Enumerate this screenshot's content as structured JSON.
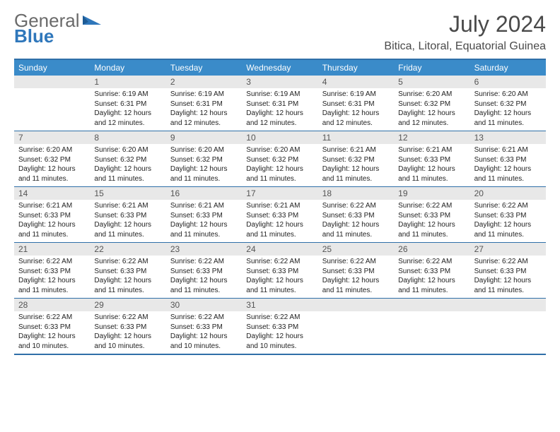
{
  "logo": {
    "general": "General",
    "blue": "Blue"
  },
  "header": {
    "title": "July 2024",
    "location": "Bitica, Litoral, Equatorial Guinea"
  },
  "colors": {
    "header_bg": "#3a8bc9",
    "border": "#2f6fa8",
    "daynum_bg": "#e8e8e8",
    "logo_gray": "#6a6a6a",
    "logo_blue": "#2f77bb"
  },
  "days": [
    "Sunday",
    "Monday",
    "Tuesday",
    "Wednesday",
    "Thursday",
    "Friday",
    "Saturday"
  ],
  "grid": {
    "start_offset": 1,
    "total_days": 31,
    "rows": 5,
    "cols": 7
  },
  "cells": [
    {
      "n": 1,
      "sr": "6:19 AM",
      "ss": "6:31 PM",
      "dl": "12 hours and 12 minutes."
    },
    {
      "n": 2,
      "sr": "6:19 AM",
      "ss": "6:31 PM",
      "dl": "12 hours and 12 minutes."
    },
    {
      "n": 3,
      "sr": "6:19 AM",
      "ss": "6:31 PM",
      "dl": "12 hours and 12 minutes."
    },
    {
      "n": 4,
      "sr": "6:19 AM",
      "ss": "6:31 PM",
      "dl": "12 hours and 12 minutes."
    },
    {
      "n": 5,
      "sr": "6:20 AM",
      "ss": "6:32 PM",
      "dl": "12 hours and 12 minutes."
    },
    {
      "n": 6,
      "sr": "6:20 AM",
      "ss": "6:32 PM",
      "dl": "12 hours and 11 minutes."
    },
    {
      "n": 7,
      "sr": "6:20 AM",
      "ss": "6:32 PM",
      "dl": "12 hours and 11 minutes."
    },
    {
      "n": 8,
      "sr": "6:20 AM",
      "ss": "6:32 PM",
      "dl": "12 hours and 11 minutes."
    },
    {
      "n": 9,
      "sr": "6:20 AM",
      "ss": "6:32 PM",
      "dl": "12 hours and 11 minutes."
    },
    {
      "n": 10,
      "sr": "6:20 AM",
      "ss": "6:32 PM",
      "dl": "12 hours and 11 minutes."
    },
    {
      "n": 11,
      "sr": "6:21 AM",
      "ss": "6:32 PM",
      "dl": "12 hours and 11 minutes."
    },
    {
      "n": 12,
      "sr": "6:21 AM",
      "ss": "6:33 PM",
      "dl": "12 hours and 11 minutes."
    },
    {
      "n": 13,
      "sr": "6:21 AM",
      "ss": "6:33 PM",
      "dl": "12 hours and 11 minutes."
    },
    {
      "n": 14,
      "sr": "6:21 AM",
      "ss": "6:33 PM",
      "dl": "12 hours and 11 minutes."
    },
    {
      "n": 15,
      "sr": "6:21 AM",
      "ss": "6:33 PM",
      "dl": "12 hours and 11 minutes."
    },
    {
      "n": 16,
      "sr": "6:21 AM",
      "ss": "6:33 PM",
      "dl": "12 hours and 11 minutes."
    },
    {
      "n": 17,
      "sr": "6:21 AM",
      "ss": "6:33 PM",
      "dl": "12 hours and 11 minutes."
    },
    {
      "n": 18,
      "sr": "6:22 AM",
      "ss": "6:33 PM",
      "dl": "12 hours and 11 minutes."
    },
    {
      "n": 19,
      "sr": "6:22 AM",
      "ss": "6:33 PM",
      "dl": "12 hours and 11 minutes."
    },
    {
      "n": 20,
      "sr": "6:22 AM",
      "ss": "6:33 PM",
      "dl": "12 hours and 11 minutes."
    },
    {
      "n": 21,
      "sr": "6:22 AM",
      "ss": "6:33 PM",
      "dl": "12 hours and 11 minutes."
    },
    {
      "n": 22,
      "sr": "6:22 AM",
      "ss": "6:33 PM",
      "dl": "12 hours and 11 minutes."
    },
    {
      "n": 23,
      "sr": "6:22 AM",
      "ss": "6:33 PM",
      "dl": "12 hours and 11 minutes."
    },
    {
      "n": 24,
      "sr": "6:22 AM",
      "ss": "6:33 PM",
      "dl": "12 hours and 11 minutes."
    },
    {
      "n": 25,
      "sr": "6:22 AM",
      "ss": "6:33 PM",
      "dl": "12 hours and 11 minutes."
    },
    {
      "n": 26,
      "sr": "6:22 AM",
      "ss": "6:33 PM",
      "dl": "12 hours and 11 minutes."
    },
    {
      "n": 27,
      "sr": "6:22 AM",
      "ss": "6:33 PM",
      "dl": "12 hours and 11 minutes."
    },
    {
      "n": 28,
      "sr": "6:22 AM",
      "ss": "6:33 PM",
      "dl": "12 hours and 10 minutes."
    },
    {
      "n": 29,
      "sr": "6:22 AM",
      "ss": "6:33 PM",
      "dl": "12 hours and 10 minutes."
    },
    {
      "n": 30,
      "sr": "6:22 AM",
      "ss": "6:33 PM",
      "dl": "12 hours and 10 minutes."
    },
    {
      "n": 31,
      "sr": "6:22 AM",
      "ss": "6:33 PM",
      "dl": "12 hours and 10 minutes."
    }
  ],
  "labels": {
    "sunrise": "Sunrise:",
    "sunset": "Sunset:",
    "daylight": "Daylight:"
  }
}
